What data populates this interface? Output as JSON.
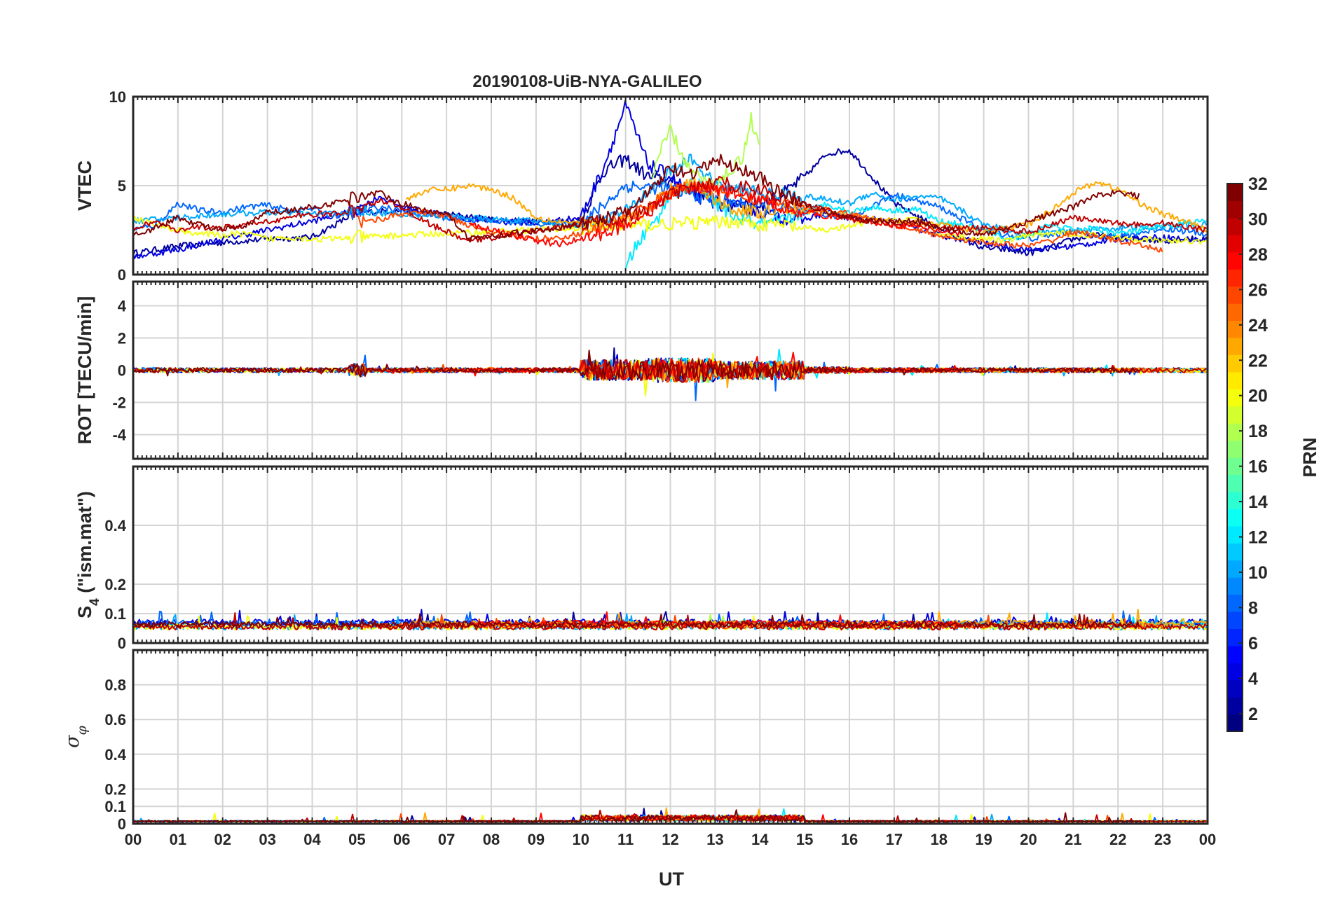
{
  "chart_data": {
    "type": "line",
    "title": "20190108-UiB-NYA-GALILEO",
    "xlabel": "UT",
    "x_range": [
      0,
      24
    ],
    "x_ticks": [
      "00",
      "01",
      "02",
      "03",
      "04",
      "05",
      "06",
      "07",
      "08",
      "09",
      "10",
      "11",
      "12",
      "13",
      "14",
      "15",
      "16",
      "17",
      "18",
      "19",
      "20",
      "21",
      "22",
      "23",
      "00"
    ],
    "grid": true,
    "colorbar": {
      "label": "PRN",
      "range": [
        1,
        32
      ],
      "ticks": [
        "2",
        "4",
        "6",
        "8",
        "10",
        "12",
        "14",
        "16",
        "18",
        "20",
        "22",
        "24",
        "26",
        "28",
        "30",
        "32"
      ],
      "placement": "right",
      "colormap": "jet"
    },
    "panels": [
      {
        "ylabel": "VTEC",
        "ylim": [
          0,
          10
        ],
        "yticks": [
          "0",
          "5",
          "10"
        ],
        "series": [
          {
            "prn": 2,
            "x": [
              0,
              1,
              2,
              3,
              4,
              5,
              6,
              7,
              8,
              9,
              10,
              10.5,
              11,
              11.5,
              12,
              12.5,
              13,
              13.5,
              14,
              14.5,
              15,
              15.5,
              16,
              16.5,
              17,
              17.5,
              18,
              18.5,
              19,
              19.5,
              20,
              20.5,
              21,
              21.5,
              22,
              22.5,
              23,
              23.5,
              24
            ],
            "y": [
              1.2,
              1.6,
              1.8,
              2.0,
              2.1,
              3.5,
              3.6,
              3.4,
              3.1,
              3.0,
              3.0,
              5.8,
              6.5,
              5.5,
              5.2,
              4.8,
              4.3,
              4.0,
              3.9,
              4.5,
              5.5,
              6.8,
              7.0,
              5.5,
              4.0,
              3.3,
              2.6,
              2.0,
              1.5,
              1.4,
              1.2,
              1.5,
              2.0,
              2.2,
              2.1,
              2.0,
              1.9,
              2.0,
              2.0
            ]
          },
          {
            "prn": 4,
            "x": [
              0,
              1,
              2,
              3,
              4,
              5,
              5.5,
              6,
              7,
              8,
              9,
              10,
              10.5,
              11,
              11.5,
              12,
              12.5,
              13,
              13.5,
              14,
              14.5,
              15,
              15.5,
              16,
              17,
              18,
              19,
              20,
              21,
              22,
              23,
              24
            ],
            "y": [
              1.0,
              1.4,
              2.0,
              2.5,
              3.0,
              3.6,
              4.4,
              3.8,
              3.3,
              3.0,
              2.9,
              3.2,
              6.0,
              9.5,
              6.2,
              5.5,
              4.5,
              4.0,
              3.8,
              3.5,
              3.2,
              3.1,
              3.5,
              3.2,
              3.0,
              2.2,
              1.8,
              1.4,
              1.6,
              2.0,
              2.1,
              1.9
            ]
          },
          {
            "prn": 8,
            "x": [
              0,
              0.5,
              1,
              1.5,
              2,
              2.5,
              3,
              3.5,
              4,
              4.5,
              5,
              5.5,
              6,
              7,
              8,
              9,
              10,
              11,
              12,
              13,
              14,
              15,
              16,
              17,
              18,
              19,
              20,
              21,
              22,
              23,
              24
            ],
            "y": [
              2.5,
              2.8,
              4.0,
              3.6,
              3.5,
              3.8,
              3.9,
              3.6,
              3.7,
              3.3,
              3.5,
              3.8,
              3.6,
              3.2,
              3.0,
              2.9,
              2.8,
              5.0,
              4.8,
              4.2,
              3.8,
              3.5,
              3.2,
              4.5,
              3.8,
              2.5,
              2.0,
              2.4,
              2.1,
              2.6,
              2.3
            ]
          },
          {
            "prn": 10,
            "x": [
              0,
              1,
              2,
              3,
              4,
              5,
              6,
              7,
              8,
              9,
              10,
              11,
              12,
              12.5,
              13,
              14,
              15,
              15.5,
              16,
              16.5,
              17,
              17.5,
              18,
              18.5,
              19,
              20,
              21,
              22,
              23,
              24
            ],
            "y": [
              3.0,
              3.2,
              3.4,
              3.5,
              3.4,
              3.5,
              3.4,
              3.3,
              3.1,
              3.0,
              2.8,
              3.5,
              5.8,
              6.5,
              5.0,
              4.6,
              4.4,
              4.2,
              4.0,
              4.6,
              4.2,
              4.4,
              4.3,
              3.6,
              2.8,
              2.3,
              2.5,
              2.6,
              2.7,
              2.8
            ]
          },
          {
            "prn": 12,
            "x": [
              11.0,
              11.2,
              11.5,
              11.8,
              12.0,
              12.3,
              12.6,
              13,
              13.5,
              14,
              14.5,
              15,
              15.5,
              16,
              16.5,
              17,
              17.5,
              18,
              18.5,
              19,
              19.5,
              20,
              20.5,
              21,
              21.5,
              22,
              22.5,
              23,
              23.5,
              24
            ],
            "y": [
              0.2,
              1.5,
              2.5,
              3.5,
              4.6,
              4.8,
              5.2,
              4.0,
              3.2,
              2.8,
              3.0,
              3.5,
              4.0,
              3.5,
              3.8,
              3.6,
              3.7,
              3.0,
              2.8,
              2.5,
              2.0,
              2.2,
              2.8,
              2.5,
              2.6,
              2.3,
              2.5,
              2.7,
              2.9,
              3.0
            ]
          },
          {
            "prn": 18,
            "x": [
              11.6,
              11.8,
              12.0,
              12.2,
              12.4,
              12.6,
              12.8,
              13.0,
              13.3,
              13.6,
              13.8,
              14.0
            ],
            "y": [
              5.5,
              7.0,
              8.2,
              7.0,
              6.0,
              5.5,
              5.2,
              5.0,
              5.8,
              6.5,
              8.8,
              7.0
            ]
          },
          {
            "prn": 20,
            "x": [
              0,
              0.5,
              1,
              1.5,
              2,
              2.5,
              3,
              3.5,
              4,
              4.5,
              5,
              13.5,
              14,
              14.5,
              15,
              15.5,
              16,
              16.5,
              17,
              17.5,
              18,
              18.5,
              19,
              19.5,
              20,
              20.5,
              21,
              21.5,
              22,
              22.5,
              23,
              23.5,
              24
            ],
            "y": [
              3.2,
              2.8,
              2.5,
              2.3,
              2.2,
              2.3,
              2.0,
              2.1,
              2.0,
              2.0,
              2.1,
              3.0,
              2.8,
              2.8,
              2.6,
              2.5,
              2.7,
              3.0,
              3.0,
              3.2,
              2.3,
              2.1,
              2.0,
              1.9,
              2.2,
              2.3,
              2.3,
              2.2,
              2.1,
              2.0,
              1.9,
              1.9,
              1.9
            ]
          },
          {
            "prn": 23,
            "x": [
              6.1,
              6.5,
              7,
              7.5,
              8,
              8.5,
              9,
              9.5,
              10,
              10.5,
              11,
              11.5,
              12,
              12.5,
              13,
              13.5,
              14,
              14.5,
              15,
              16,
              17,
              18,
              19,
              20,
              20.5,
              21,
              21.5,
              22,
              22.5,
              23,
              23.5,
              24
            ],
            "y": [
              4.2,
              4.7,
              4.8,
              5.0,
              4.8,
              4.3,
              3.2,
              3.0,
              2.9,
              2.8,
              3.0,
              3.6,
              4.8,
              5.2,
              4.2,
              3.6,
              3.5,
              3.8,
              3.6,
              3.3,
              3.0,
              2.8,
              2.4,
              2.8,
              3.6,
              4.6,
              5.2,
              4.8,
              4.0,
              3.4,
              3.0,
              2.5
            ]
          },
          {
            "prn": 26,
            "x": [
              5,
              5.5,
              6,
              6.5,
              7,
              7.5,
              8,
              8.5,
              9,
              9.5,
              10,
              10.5,
              11,
              11.5,
              12,
              12.5,
              13,
              13.5,
              14,
              14.5,
              15,
              15.5,
              16,
              17,
              18,
              19,
              20,
              20.5,
              21,
              21.5,
              22,
              22.5,
              23
            ],
            "y": [
              3.0,
              3.1,
              3.4,
              3.5,
              3.3,
              2.8,
              2.4,
              2.2,
              2.0,
              2.1,
              2.3,
              2.6,
              3.3,
              3.8,
              4.6,
              5.0,
              4.8,
              4.5,
              4.2,
              3.9,
              3.7,
              3.6,
              3.4,
              2.8,
              2.2,
              1.8,
              1.6,
              1.9,
              2.4,
              2.2,
              1.9,
              1.6,
              1.4
            ]
          },
          {
            "prn": 28,
            "x": [
              7.5,
              8,
              8.5,
              9,
              9.5,
              10,
              10.5,
              11,
              11.5,
              12,
              12.5,
              13,
              13.5,
              14,
              14.5,
              15,
              16,
              17,
              18,
              18.5
            ],
            "y": [
              2.8,
              2.5,
              2.2,
              1.9,
              1.7,
              2.0,
              2.3,
              2.8,
              3.5,
              4.5,
              5.0,
              4.8,
              4.5,
              4.2,
              3.8,
              3.5,
              3.1,
              2.8,
              2.5,
              2.3
            ]
          },
          {
            "prn": 30,
            "x": [
              0,
              0.5,
              1,
              1.5,
              2,
              2.5,
              3,
              3.5,
              4,
              4.5,
              5,
              5.5,
              6,
              6.5,
              7,
              7.5,
              11,
              11.5,
              12,
              12.5,
              13,
              13.5,
              14,
              14.5,
              15,
              15.5,
              16,
              16.5,
              17,
              17.5,
              18,
              18.5,
              19,
              19.5,
              20,
              20.5,
              21,
              21.5,
              22,
              22.5,
              23,
              23.5,
              24
            ],
            "y": [
              2.6,
              3.0,
              2.4,
              2.7,
              2.6,
              2.8,
              3.0,
              3.2,
              3.4,
              3.4,
              3.6,
              4.2,
              3.8,
              3.0,
              2.4,
              1.9,
              3.2,
              3.6,
              4.5,
              4.8,
              5.2,
              5.0,
              4.8,
              4.2,
              4.0,
              3.6,
              3.2,
              3.0,
              2.9,
              2.9,
              2.7,
              2.6,
              2.6,
              2.5,
              2.4,
              2.8,
              3.2,
              3.0,
              2.9,
              2.8,
              2.9,
              2.7,
              2.5
            ]
          },
          {
            "prn": 32,
            "x": [
              0,
              0.5,
              1,
              1.5,
              2,
              2.5,
              3,
              3.5,
              4,
              4.5,
              5,
              5.5,
              6,
              6.5,
              7,
              7.5,
              10,
              10.5,
              11,
              11.5,
              12,
              12.5,
              13,
              13.5,
              14,
              14.5,
              15,
              15.5,
              16,
              16.5,
              17,
              17.5,
              18,
              18.5,
              19,
              19.5,
              20,
              20.5,
              21,
              21.5,
              22,
              22.5
            ],
            "y": [
              2.3,
              2.6,
              3.2,
              2.8,
              2.5,
              2.7,
              3.5,
              3.6,
              3.8,
              4.0,
              4.4,
              4.6,
              4.0,
              3.6,
              3.5,
              2.0,
              2.8,
              3.2,
              3.5,
              4.5,
              6.0,
              5.5,
              6.5,
              6.0,
              5.5,
              4.5,
              4.0,
              3.5,
              3.2,
              3.0,
              3.0,
              3.0,
              2.7,
              2.4,
              2.2,
              2.6,
              3.0,
              3.4,
              3.8,
              4.5,
              4.6,
              4.4
            ]
          }
        ]
      },
      {
        "ylabel": "ROT [TECU/min]",
        "ylim": [
          -5.5,
          5.5
        ],
        "yticks": [
          "-4",
          "-2",
          "0",
          "2",
          "4"
        ]
      },
      {
        "ylabel": "S4 (\"ism.mat\")",
        "ylabel_main": "S",
        "ylabel_sub": "4",
        "ylabel_rest": " (\"ism.mat\")",
        "ylim": [
          0,
          0.6
        ],
        "yticks": [
          "0",
          "0.1",
          "0.2",
          "0.4"
        ]
      },
      {
        "ylabel": "σφ",
        "ylabel_main": "σ",
        "ylabel_sub": "φ",
        "ylim": [
          0,
          1.0
        ],
        "yticks": [
          "0",
          "0.1",
          "0.2",
          "0.4",
          "0.6",
          "0.8"
        ]
      }
    ]
  }
}
